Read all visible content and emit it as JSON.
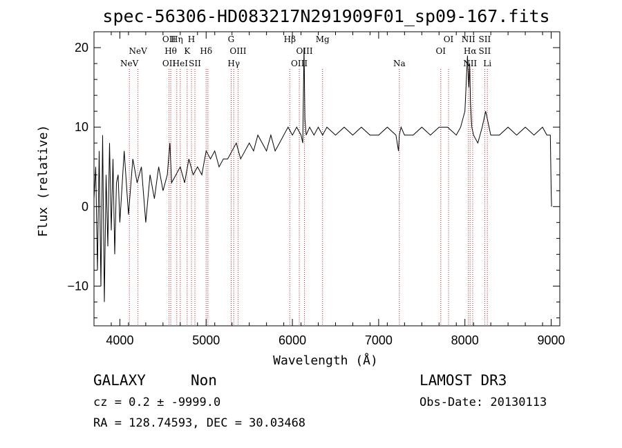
{
  "chart_data": {
    "type": "line",
    "title": "spec-56306-HD083217N291909F01_sp09-167.fits",
    "xlabel": "Wavelength (Å)",
    "ylabel": "Flux (relative)",
    "xlim": [
      3700,
      9100
    ],
    "ylim": [
      -15,
      22
    ],
    "xticks": [
      4000,
      5000,
      6000,
      7000,
      8000,
      9000
    ],
    "xtick_labels": [
      "4000",
      "5000",
      "6000",
      "7000",
      "8000",
      "9000"
    ],
    "yticks": [
      -10,
      0,
      10,
      20
    ],
    "ytick_labels": [
      "−10",
      "0",
      "10",
      "20"
    ],
    "spectrum": {
      "x": [
        3700,
        3720,
        3740,
        3760,
        3780,
        3800,
        3820,
        3840,
        3860,
        3880,
        3900,
        3920,
        3940,
        3960,
        3980,
        4000,
        4050,
        4100,
        4150,
        4200,
        4250,
        4300,
        4350,
        4400,
        4450,
        4500,
        4550,
        4580,
        4600,
        4650,
        4700,
        4750,
        4800,
        4850,
        4900,
        4950,
        5000,
        5050,
        5100,
        5150,
        5200,
        5250,
        5300,
        5350,
        5400,
        5450,
        5500,
        5550,
        5600,
        5650,
        5700,
        5750,
        5800,
        5850,
        5900,
        5950,
        6000,
        6050,
        6100,
        6120,
        6135,
        6145,
        6160,
        6200,
        6250,
        6300,
        6350,
        6400,
        6500,
        6600,
        6700,
        6800,
        6900,
        7000,
        7100,
        7200,
        7230,
        7240,
        7260,
        7300,
        7400,
        7500,
        7600,
        7700,
        7800,
        7900,
        7950,
        8000,
        8030,
        8045,
        8055,
        8065,
        8080,
        8100,
        8150,
        8200,
        8240,
        8260,
        8300,
        8400,
        8500,
        8600,
        8700,
        8800,
        8900,
        8950,
        8990,
        9000,
        9005
      ],
      "y": [
        1,
        5,
        -8,
        7,
        -10,
        9,
        -12,
        4,
        -5,
        8,
        -3,
        6,
        -6,
        3,
        4,
        -2,
        7,
        -1,
        6,
        3,
        5,
        -2,
        4,
        1,
        5,
        2,
        4,
        8,
        3,
        4,
        5,
        3,
        6,
        4,
        5,
        4,
        7,
        6,
        7,
        5,
        6,
        6,
        7,
        8,
        6,
        7,
        8,
        7,
        9,
        8,
        7,
        9,
        7,
        8,
        9,
        10,
        9,
        10,
        9,
        8,
        20,
        11,
        9,
        10,
        9,
        10,
        9,
        10,
        9,
        10,
        9,
        10,
        9,
        9,
        10,
        9,
        7,
        9,
        10,
        9,
        9,
        10,
        9,
        10,
        10,
        9,
        10,
        12,
        19,
        15,
        18,
        13,
        10,
        9,
        8,
        10,
        12,
        11,
        9,
        9,
        10,
        9,
        10,
        9,
        10,
        9,
        9,
        2,
        0
      ]
    },
    "line_markers": [
      {
        "wl": 4110,
        "labels": [
          "NeV"
        ],
        "rows": [
          3
        ]
      },
      {
        "wl": 4210,
        "labels": [
          "NeV"
        ],
        "rows": [
          2
        ]
      },
      {
        "wl": 4570,
        "labels": [
          "OII",
          "OII"
        ],
        "rows": [
          1,
          3
        ]
      },
      {
        "wl": 4590,
        "labels": [
          "Hθ"
        ],
        "rows": [
          2
        ]
      },
      {
        "wl": 4660,
        "labels": [
          "Hη"
        ],
        "rows": [
          1
        ]
      },
      {
        "wl": 4700,
        "labels": [
          "HeI"
        ],
        "rows": [
          3
        ]
      },
      {
        "wl": 4780,
        "labels": [
          "K"
        ],
        "rows": [
          2
        ]
      },
      {
        "wl": 4830,
        "labels": [
          "H"
        ],
        "rows": [
          1
        ]
      },
      {
        "wl": 4870,
        "labels": [
          "SII"
        ],
        "rows": [
          3
        ]
      },
      {
        "wl": 5000,
        "labels": [
          "Hδ"
        ],
        "rows": [
          2
        ]
      },
      {
        "wl": 5020,
        "labels": [],
        "rows": []
      },
      {
        "wl": 5290,
        "labels": [
          "G"
        ],
        "rows": [
          1
        ]
      },
      {
        "wl": 5320,
        "labels": [
          "Hγ"
        ],
        "rows": [
          3
        ]
      },
      {
        "wl": 5370,
        "labels": [
          "OIII"
        ],
        "rows": [
          2
        ]
      },
      {
        "wl": 5970,
        "labels": [
          "Hβ"
        ],
        "rows": [
          1
        ]
      },
      {
        "wl": 6080,
        "labels": [
          "OIII"
        ],
        "rows": [
          3
        ]
      },
      {
        "wl": 6140,
        "labels": [
          "OIII"
        ],
        "rows": [
          2
        ]
      },
      {
        "wl": 6350,
        "labels": [
          "Mg"
        ],
        "rows": [
          1
        ]
      },
      {
        "wl": 7240,
        "labels": [
          "Na"
        ],
        "rows": [
          3
        ]
      },
      {
        "wl": 7720,
        "labels": [
          "OI"
        ],
        "rows": [
          2
        ]
      },
      {
        "wl": 7810,
        "labels": [
          "OI"
        ],
        "rows": [
          1
        ]
      },
      {
        "wl": 8040,
        "labels": [
          "NII"
        ],
        "rows": [
          1
        ]
      },
      {
        "wl": 8060,
        "labels": [
          "Hα",
          "NII"
        ],
        "rows": [
          2,
          3
        ]
      },
      {
        "wl": 8090,
        "labels": [],
        "rows": []
      },
      {
        "wl": 8230,
        "labels": [
          "SII",
          "SII"
        ],
        "rows": [
          1,
          2
        ]
      },
      {
        "wl": 8260,
        "labels": [
          "Li"
        ],
        "rows": [
          3
        ]
      }
    ],
    "colors": {
      "spectrum": "#000000",
      "markers": "#b22222",
      "axes": "#000000"
    }
  },
  "footer": {
    "object_class": "GALAXY",
    "subclass": "Non",
    "survey": "LAMOST DR3",
    "cz": "cz = 0.2 ± -9999.0",
    "obs_date": "Obs-Date: 20130113",
    "coords": "RA = 128.74593, DEC =  30.03468"
  }
}
